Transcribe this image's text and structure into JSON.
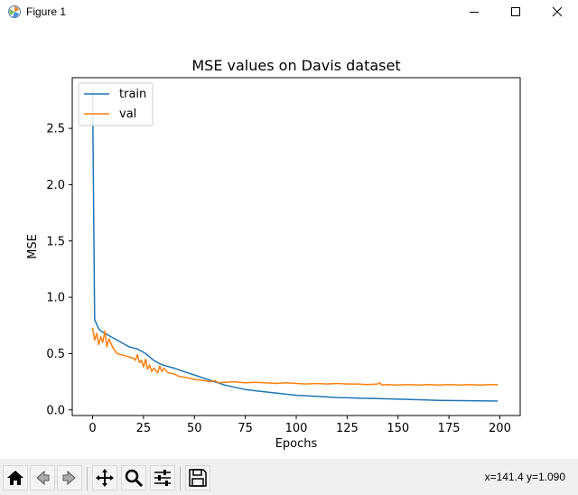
{
  "window": {
    "title": "Figure 1",
    "minimize_icon": "minimize-icon",
    "maximize_icon": "maximize-icon",
    "close_icon": "close-icon",
    "app_icon": "matplotlib-figure-icon"
  },
  "toolbar": {
    "buttons": [
      {
        "name": "home",
        "icon": "home-icon"
      },
      {
        "name": "back",
        "icon": "back-arrow-icon"
      },
      {
        "name": "forward",
        "icon": "forward-arrow-icon"
      },
      {
        "name": "pan",
        "icon": "move-icon"
      },
      {
        "name": "zoom",
        "icon": "magnifier-icon"
      },
      {
        "name": "configure-subplots",
        "icon": "sliders-icon"
      },
      {
        "name": "save",
        "icon": "floppy-disk-icon"
      }
    ],
    "coords": "x=141.4 y=1.090"
  },
  "chart_data": {
    "type": "line",
    "title": "MSE values on Davis dataset",
    "xlabel": "Epochs",
    "ylabel": "MSE",
    "xlim": [
      -10,
      210
    ],
    "ylim": [
      -0.05,
      2.95
    ],
    "xticks": [
      "0",
      "25",
      "50",
      "75",
      "100",
      "125",
      "150",
      "175",
      "200"
    ],
    "yticks": [
      "0.0",
      "0.5",
      "1.0",
      "1.5",
      "2.0",
      "2.5"
    ],
    "legend": {
      "position": "upper-left"
    },
    "grid": false,
    "series": [
      {
        "name": "train",
        "color": "#1f77b4",
        "x": [
          0,
          1,
          2,
          3,
          4,
          5,
          6,
          7,
          8,
          10,
          12,
          14,
          16,
          18,
          20,
          22,
          24,
          26,
          28,
          30,
          33,
          36,
          40,
          45,
          50,
          55,
          60,
          65,
          70,
          75,
          80,
          90,
          100,
          110,
          120,
          130,
          140,
          150,
          160,
          170,
          180,
          190,
          199
        ],
        "y": [
          2.85,
          0.8,
          0.76,
          0.72,
          0.7,
          0.69,
          0.68,
          0.67,
          0.66,
          0.64,
          0.62,
          0.6,
          0.58,
          0.56,
          0.55,
          0.54,
          0.52,
          0.5,
          0.47,
          0.44,
          0.41,
          0.39,
          0.37,
          0.34,
          0.31,
          0.28,
          0.25,
          0.22,
          0.2,
          0.18,
          0.17,
          0.15,
          0.13,
          0.12,
          0.11,
          0.105,
          0.1,
          0.095,
          0.09,
          0.085,
          0.082,
          0.08,
          0.078
        ]
      },
      {
        "name": "val",
        "color": "#ff7f0e",
        "x": [
          0,
          1,
          2,
          3,
          4,
          5,
          6,
          7,
          8,
          10,
          12,
          14,
          16,
          18,
          20,
          21,
          22,
          23,
          24,
          25,
          26,
          27,
          28,
          29,
          30,
          31,
          32,
          33,
          34,
          35,
          37,
          40,
          42,
          45,
          48,
          50,
          55,
          58,
          60,
          62,
          65,
          70,
          72,
          75,
          80,
          85,
          90,
          95,
          100,
          105,
          110,
          115,
          120,
          125,
          130,
          135,
          140,
          141,
          142,
          145,
          150,
          155,
          160,
          165,
          170,
          175,
          180,
          185,
          190,
          195,
          199
        ],
        "y": [
          0.73,
          0.62,
          0.68,
          0.58,
          0.65,
          0.6,
          0.7,
          0.56,
          0.63,
          0.55,
          0.5,
          0.49,
          0.48,
          0.47,
          0.46,
          0.44,
          0.49,
          0.42,
          0.44,
          0.38,
          0.45,
          0.36,
          0.4,
          0.34,
          0.37,
          0.35,
          0.33,
          0.39,
          0.34,
          0.37,
          0.33,
          0.32,
          0.3,
          0.29,
          0.28,
          0.27,
          0.26,
          0.25,
          0.26,
          0.24,
          0.245,
          0.25,
          0.245,
          0.24,
          0.245,
          0.24,
          0.235,
          0.24,
          0.235,
          0.23,
          0.235,
          0.23,
          0.235,
          0.23,
          0.23,
          0.225,
          0.23,
          0.24,
          0.22,
          0.225,
          0.22,
          0.225,
          0.22,
          0.225,
          0.22,
          0.225,
          0.22,
          0.225,
          0.22,
          0.225,
          0.225
        ]
      }
    ]
  }
}
